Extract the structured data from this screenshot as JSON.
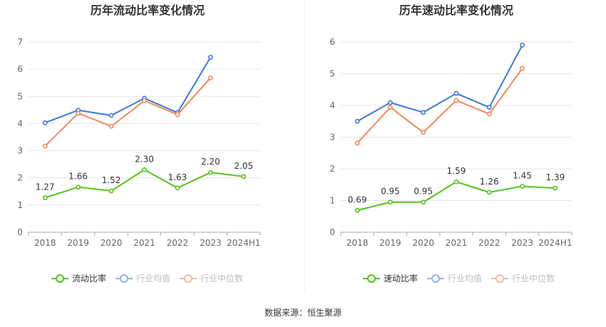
{
  "source_text": "数据来源：恒生聚源",
  "colors": {
    "green": "#52c41a",
    "blue": "#3a78db",
    "orange": "#f0885a",
    "grid": "#e6e6e6",
    "axis": "#aaaaaa"
  },
  "chart_data": [
    {
      "type": "line",
      "title": "历年流动比率变化情况",
      "categories": [
        "2018",
        "2019",
        "2020",
        "2021",
        "2022",
        "2023",
        "2024H1"
      ],
      "ylim": [
        0,
        7
      ],
      "yticks": [
        0,
        1,
        2,
        3,
        4,
        5,
        6,
        7
      ],
      "grid": true,
      "legend_position": "bottom",
      "series": [
        {
          "name": "流动比率",
          "color": "#52c41a",
          "labels": true,
          "values": [
            1.27,
            1.66,
            1.52,
            2.3,
            1.63,
            2.2,
            2.05
          ],
          "label_text": [
            "1.27",
            "1.66",
            "1.52",
            "2.30",
            "1.63",
            "2.20",
            "2.05"
          ]
        },
        {
          "name": "行业均值",
          "color": "#3a78db",
          "labels": false,
          "values": [
            4.03,
            4.49,
            4.3,
            4.93,
            4.4,
            6.44,
            null
          ]
        },
        {
          "name": "行业中位数",
          "color": "#f0885a",
          "labels": false,
          "values": [
            3.17,
            4.38,
            3.9,
            4.84,
            4.33,
            5.68,
            null
          ]
        }
      ]
    },
    {
      "type": "line",
      "title": "历年速动比率变化情况",
      "categories": [
        "2018",
        "2019",
        "2020",
        "2021",
        "2022",
        "2023",
        "2024H1"
      ],
      "ylim": [
        0,
        6
      ],
      "yticks": [
        0,
        1,
        2,
        3,
        4,
        5,
        6
      ],
      "grid": true,
      "legend_position": "bottom",
      "series": [
        {
          "name": "速动比率",
          "color": "#52c41a",
          "labels": true,
          "values": [
            0.69,
            0.95,
            0.95,
            1.59,
            1.26,
            1.45,
            1.39
          ],
          "label_text": [
            "0.69",
            "0.95",
            "0.95",
            "1.59",
            "1.26",
            "1.45",
            "1.39"
          ]
        },
        {
          "name": "行业均值",
          "color": "#3a78db",
          "labels": false,
          "values": [
            3.5,
            4.09,
            3.78,
            4.38,
            3.94,
            5.9,
            null
          ]
        },
        {
          "name": "行业中位数",
          "color": "#f0885a",
          "labels": false,
          "values": [
            2.81,
            3.94,
            3.15,
            4.16,
            3.73,
            5.17,
            null
          ]
        }
      ]
    }
  ]
}
